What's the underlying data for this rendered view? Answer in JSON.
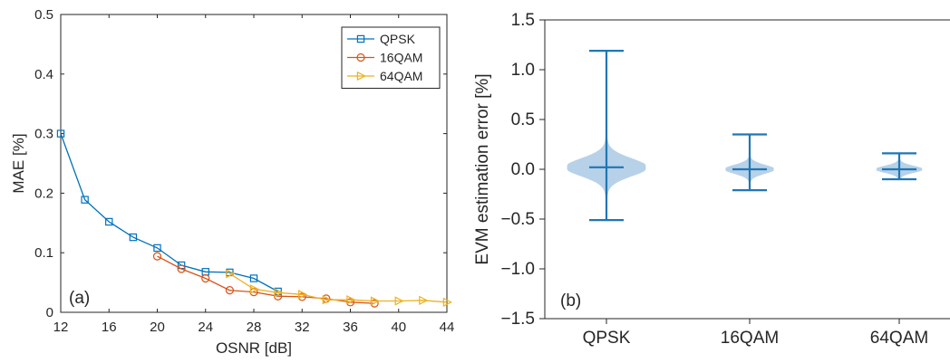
{
  "chart_data": [
    {
      "type": "line",
      "xlabel": "OSNR [dB]",
      "ylabel": "MAE [%]",
      "xlim": [
        12,
        44
      ],
      "ylim": [
        0,
        0.5
      ],
      "xticks": [
        12,
        16,
        20,
        24,
        28,
        32,
        36,
        40,
        44
      ],
      "yticks": [
        0,
        0.1,
        0.2,
        0.3,
        0.4,
        0.5
      ],
      "ytick_labels": [
        "0",
        "0.1",
        "0.2",
        "0.3",
        "0.4",
        "0.5"
      ],
      "grid": false,
      "legend_position": "top-right",
      "annotation": "(a)",
      "series": [
        {
          "name": "QPSK",
          "color": "#0072BD",
          "marker": "square",
          "x": [
            12,
            14,
            16,
            18,
            20,
            22,
            24,
            26,
            28,
            30
          ],
          "y": [
            0.3,
            0.189,
            0.152,
            0.126,
            0.108,
            0.079,
            0.068,
            0.067,
            0.057,
            0.035
          ]
        },
        {
          "name": "16QAM",
          "color": "#D95319",
          "marker": "circle",
          "x": [
            20,
            22,
            24,
            26,
            28,
            30,
            32,
            34,
            36,
            38
          ],
          "y": [
            0.094,
            0.073,
            0.057,
            0.037,
            0.034,
            0.027,
            0.026,
            0.023,
            0.017,
            0.015
          ]
        },
        {
          "name": "64QAM",
          "color": "#EDB120",
          "marker": "triangle-right",
          "x": [
            26,
            28,
            30,
            32,
            34,
            36,
            38,
            40,
            42,
            44
          ],
          "y": [
            0.065,
            0.039,
            0.033,
            0.03,
            0.021,
            0.021,
            0.019,
            0.019,
            0.02,
            0.017
          ]
        }
      ]
    },
    {
      "type": "violin",
      "ylabel": "EVM estimation error [%]",
      "categories": [
        "QPSK",
        "16QAM",
        "64QAM"
      ],
      "ylim": [
        -1.5,
        1.5
      ],
      "yticks": [
        -1.5,
        -1.0,
        -0.5,
        0.0,
        0.5,
        1.0,
        1.5
      ],
      "ytick_labels": [
        "−1.5",
        "−1.0",
        "−0.5",
        "0.0",
        "0.5",
        "1.0",
        "1.5"
      ],
      "grid": false,
      "annotation": "(b)",
      "color": "#1F77B4",
      "fill_color": "#B7D1E8",
      "groups": [
        {
          "name": "QPSK",
          "min": -0.51,
          "max": 1.19,
          "median": 0.02,
          "max_density_halfwidth": 0.31
        },
        {
          "name": "16QAM",
          "min": -0.21,
          "max": 0.35,
          "median": 0.0,
          "max_density_halfwidth": 0.19
        },
        {
          "name": "64QAM",
          "min": -0.1,
          "max": 0.16,
          "median": 0.0,
          "max_density_halfwidth": 0.18
        }
      ]
    }
  ]
}
